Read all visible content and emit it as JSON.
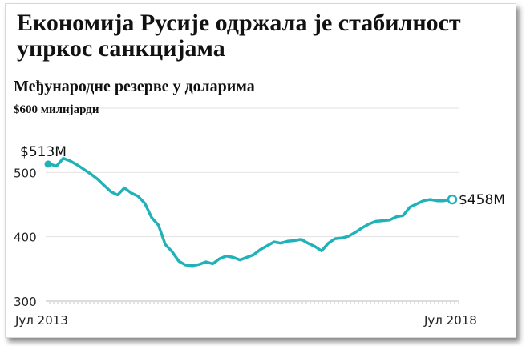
{
  "page": {
    "headline": "Економија Русије одржала је стабилност упркос санкцијама"
  },
  "chart_data": {
    "type": "line",
    "title": "Међународне резерве у доларима",
    "unit_label": "$600 милијарди",
    "ylim": [
      300,
      600
    ],
    "y_ticks": [
      {
        "value": 600,
        "label": ""
      },
      {
        "value": 500,
        "label": "500"
      },
      {
        "value": 400,
        "label": "400"
      },
      {
        "value": 300,
        "label": "300"
      }
    ],
    "x_labels": [
      "Јул 2013",
      "Јул 2018"
    ],
    "grid": true,
    "color": "#20b2b8",
    "start_label": "$513М",
    "end_label": "$458М",
    "series": [
      {
        "values": [
          513,
          510,
          522,
          518,
          512,
          505,
          498,
          490,
          480,
          470,
          465,
          476,
          468,
          463,
          452,
          430,
          418,
          388,
          377,
          362,
          356,
          355,
          357,
          361,
          358,
          366,
          370,
          368,
          364,
          368,
          372,
          380,
          386,
          392,
          390,
          393,
          394,
          396,
          390,
          385,
          378,
          390,
          397,
          398,
          401,
          407,
          414,
          420,
          424,
          425,
          426,
          431,
          433,
          446,
          451,
          456,
          458,
          456,
          456,
          458
        ]
      }
    ]
  }
}
